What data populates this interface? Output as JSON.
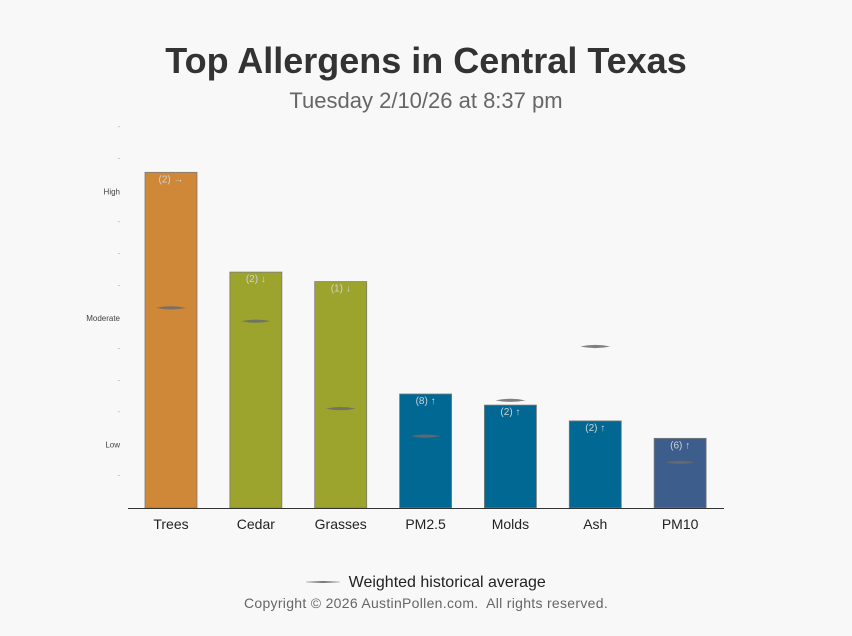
{
  "title": "Top Allergens in Central Texas",
  "subtitle": "Tuesday 2/10/26 at 8:37 pm",
  "chart_data": {
    "type": "bar",
    "title": "Top Allergens in Central Texas",
    "subtitle": "Tuesday 2/10/26 at 8:37 pm",
    "categories": [
      "Trees",
      "Cedar",
      "Grasses",
      "PM2.5",
      "Molds",
      "Ash",
      "PM10"
    ],
    "values": [
      10.6,
      7.45,
      7.15,
      3.6,
      3.25,
      2.75,
      2.2
    ],
    "historical_average": [
      6.32,
      5.9,
      3.14,
      2.27,
      3.4,
      5.1,
      1.44
    ],
    "bar_labels": [
      "(2) →",
      "(2) ↓",
      "(1) ↓",
      "(8) ↑",
      "(2) ↑",
      "(2) ↑",
      "(6) ↑"
    ],
    "bar_colors": [
      "#cf8738",
      "#9ca42e",
      "#9ca42e",
      "#006893",
      "#006893",
      "#006893",
      "#3d5d8c"
    ],
    "ylim": [
      0,
      12
    ],
    "ytick_values": [
      1,
      2,
      3,
      4,
      5,
      6,
      7,
      8,
      9,
      10,
      11,
      12
    ],
    "ytick_labels": [
      "-",
      "Low",
      "-",
      "-",
      "-",
      "Moderate",
      "-",
      "-",
      "-",
      "High",
      "-",
      "-"
    ],
    "xlabel": "",
    "ylabel": "",
    "grid": false,
    "legend": {
      "position": "bottom",
      "entries": [
        "Weighted historical average"
      ]
    }
  },
  "legend_label": "Weighted historical average",
  "legend_color": "#777777",
  "footer": "Copyright © 2026 AustinPollen.com.  All rights reserved."
}
